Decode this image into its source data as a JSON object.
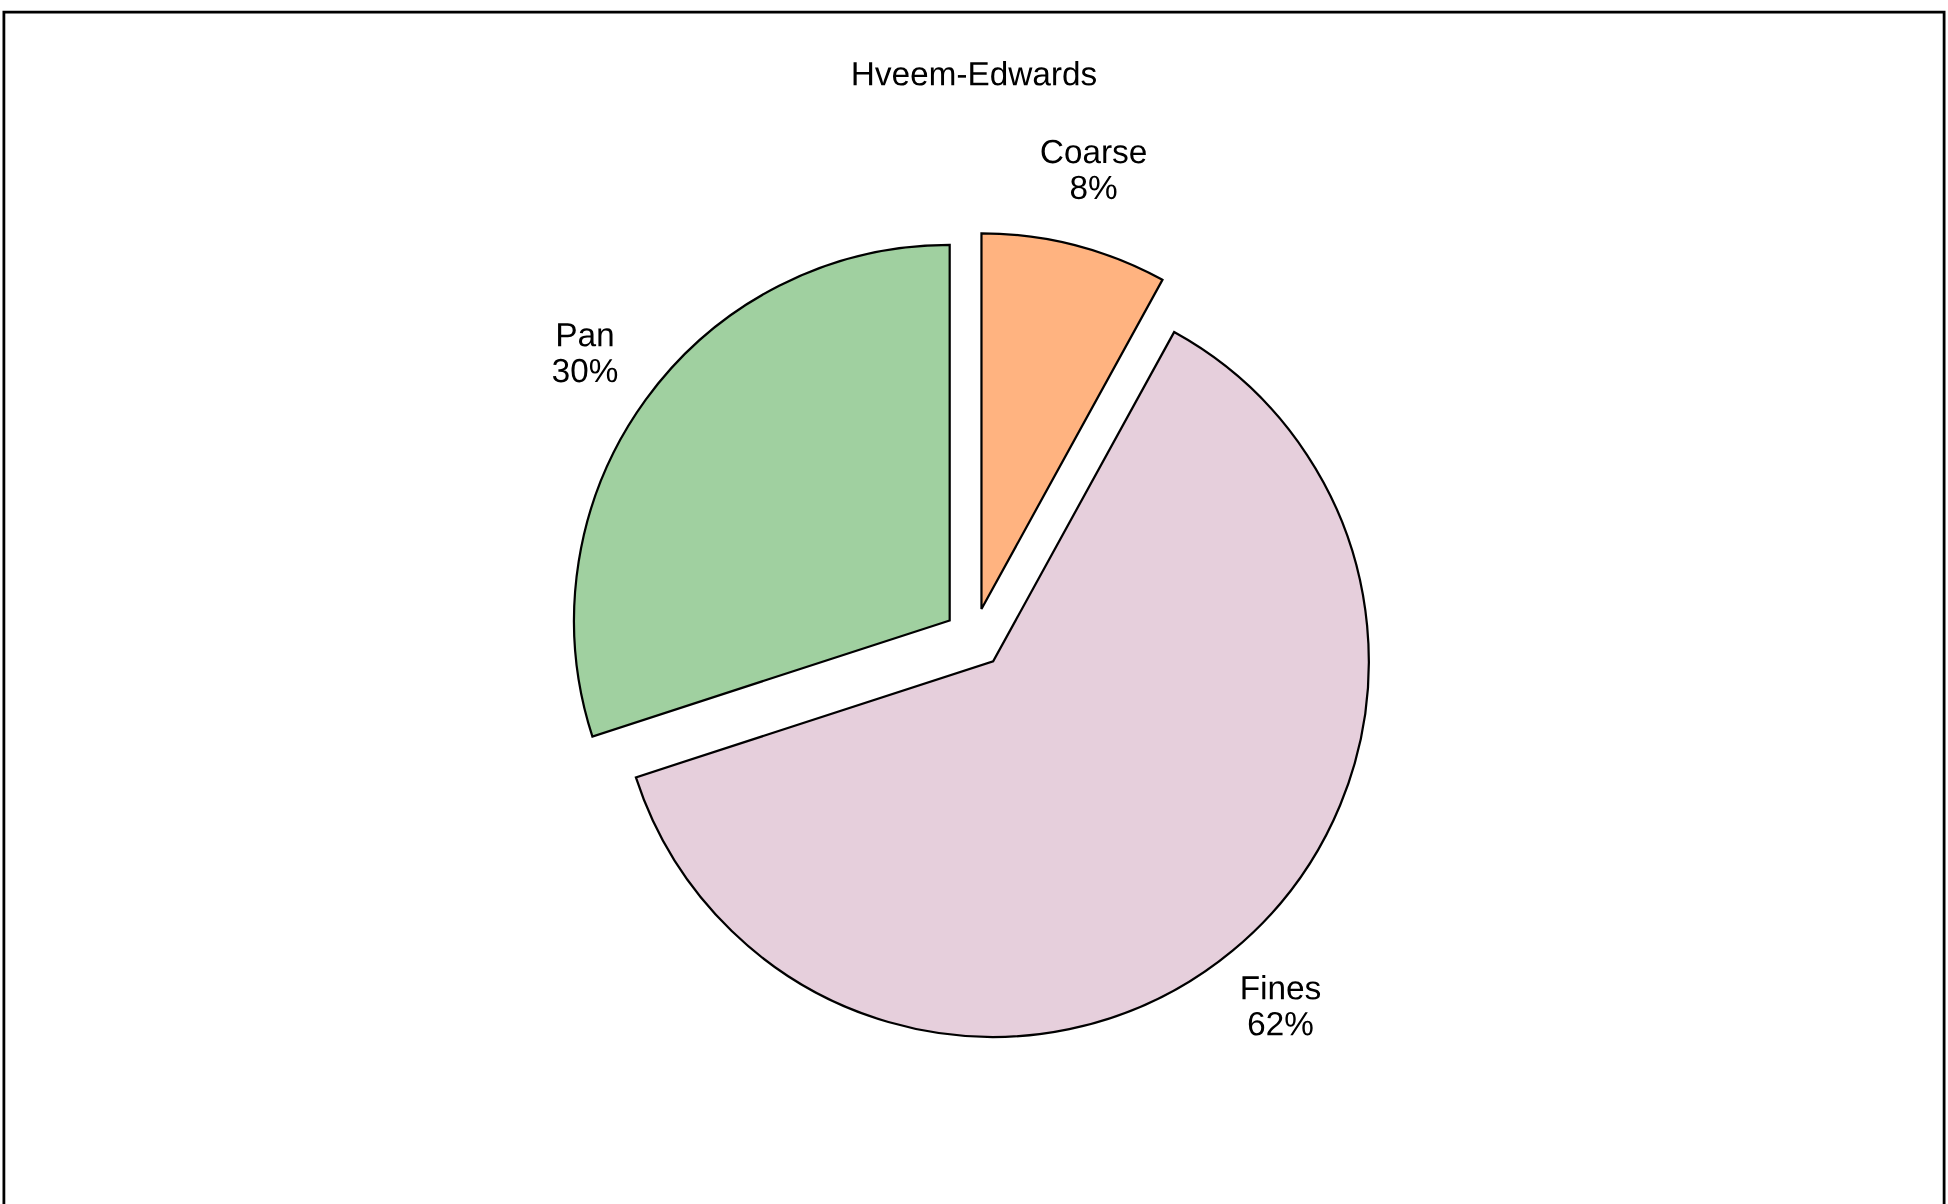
{
  "chart_data": {
    "type": "pie",
    "title": "Hveem-Edwards",
    "categories": [
      "Coarse",
      "Fines",
      "Pan"
    ],
    "values": [
      8,
      62,
      30
    ],
    "value_labels": [
      "8%",
      "62%",
      "30%"
    ],
    "colors": [
      "#ffb380",
      "#e6cfdc",
      "#a0d0a0"
    ],
    "legend": false
  }
}
